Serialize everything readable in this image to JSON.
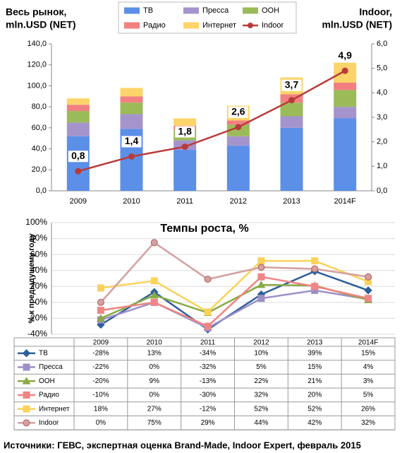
{
  "chart_data": [
    {
      "type": "bar",
      "y_label": [
        "Весь рынок,",
        "mln.USD (NET)"
      ],
      "y2_label": [
        "Indoor,",
        "mln.USD (NET)"
      ],
      "categories": [
        "2009",
        "2010",
        "2011",
        "2012",
        "2013",
        "2014F"
      ],
      "series": [
        {
          "name": "ТВ",
          "color": "#5b8fe8",
          "values": [
            52,
            59,
            39,
            43,
            60,
            69
          ]
        },
        {
          "name": "Пресса",
          "color": "#a594cc",
          "values": [
            13,
            14,
            9,
            9,
            11,
            11
          ]
        },
        {
          "name": "ООН",
          "color": "#9bbb59",
          "values": [
            11,
            11,
            10,
            11,
            13,
            16
          ]
        },
        {
          "name": "Радио",
          "color": "#f28080",
          "values": [
            6,
            6,
            4,
            4,
            8,
            7
          ]
        },
        {
          "name": "Интернет",
          "color": "#fdd46a",
          "values": [
            6,
            8,
            7,
            14,
            16,
            19
          ]
        },
        {
          "name": "Indoor",
          "color": "#b83b3b",
          "axis": "y2",
          "values": [
            0.8,
            1.4,
            1.8,
            2.6,
            3.7,
            4.9
          ],
          "value_labels": [
            "0,8",
            "1,4",
            "1,8",
            "2,6",
            "3,7",
            "4,9"
          ]
        }
      ],
      "ylim": [
        0,
        140
      ],
      "yticks": [
        {
          "value": 0,
          "label": "0,0"
        },
        {
          "value": 20,
          "label": "20,0"
        },
        {
          "value": 40,
          "label": "40,0"
        },
        {
          "value": 60,
          "label": "60,0"
        },
        {
          "value": 80,
          "label": "80,0"
        },
        {
          "value": 100,
          "label": "100,0"
        },
        {
          "value": 120,
          "label": "120,0"
        },
        {
          "value": 140,
          "label": "140,0"
        }
      ],
      "y2lim": [
        0,
        6
      ],
      "y2ticks": [
        {
          "value": 0,
          "label": "0,0"
        },
        {
          "value": 1,
          "label": "1,0"
        },
        {
          "value": 2,
          "label": "2,0"
        },
        {
          "value": 3,
          "label": "3,0"
        },
        {
          "value": 4,
          "label": "4,0"
        },
        {
          "value": 5,
          "label": "5,0"
        },
        {
          "value": 6,
          "label": "6,0"
        }
      ],
      "grid": false
    },
    {
      "type": "line",
      "title": "Темпы роста, %",
      "y_label": "% к предыдущему году",
      "categories": [
        "2009",
        "2010",
        "2011",
        "2012",
        "2013",
        "2014F"
      ],
      "series": [
        {
          "name": "ТВ",
          "color": "#2e5f9a",
          "marker": "diamond",
          "values": [
            -28,
            13,
            -34,
            10,
            39,
            15
          ],
          "value_labels": [
            "-28%",
            "13%",
            "-34%",
            "10%",
            "39%",
            "15%"
          ]
        },
        {
          "name": "Пресса",
          "color": "#9e8fc6",
          "marker": "square",
          "values": [
            -22,
            0,
            -32,
            5,
            15,
            4
          ],
          "value_labels": [
            "-22%",
            "0%",
            "-32%",
            "5%",
            "15%",
            "4%"
          ]
        },
        {
          "name": "ООН",
          "color": "#8aaa45",
          "marker": "triangle",
          "values": [
            -20,
            9,
            -13,
            22,
            21,
            3
          ],
          "value_labels": [
            "-20%",
            "9%",
            "-13%",
            "22%",
            "21%",
            "3%"
          ]
        },
        {
          "name": "Радио",
          "color": "#f08585",
          "marker": "square",
          "values": [
            -10,
            0,
            -30,
            32,
            20,
            5
          ],
          "value_labels": [
            "-10%",
            "0%",
            "-30%",
            "32%",
            "20%",
            "5%"
          ]
        },
        {
          "name": "Интернет",
          "color": "#fad25a",
          "marker": "square",
          "values": [
            18,
            27,
            -12,
            52,
            52,
            26
          ],
          "value_labels": [
            "18%",
            "27%",
            "-12%",
            "52%",
            "52%",
            "26%"
          ]
        },
        {
          "name": "Indoor",
          "color": "#d4a0a0",
          "marker": "circle",
          "values": [
            0,
            75,
            29,
            44,
            42,
            32
          ],
          "value_labels": [
            "0%",
            "75%",
            "29%",
            "44%",
            "42%",
            "32%"
          ]
        }
      ],
      "ylim": [
        -40,
        100
      ],
      "yticks": [
        {
          "value": -40,
          "label": "-40%"
        },
        {
          "value": -20,
          "label": "-20%"
        },
        {
          "value": 0,
          "label": "0%"
        },
        {
          "value": 20,
          "label": "20%"
        },
        {
          "value": 40,
          "label": "40%"
        },
        {
          "value": 60,
          "label": "60%"
        },
        {
          "value": 80,
          "label": "80%"
        },
        {
          "value": 100,
          "label": "100%"
        }
      ],
      "grid": true
    }
  ],
  "source": "Источники: ГЕВС, экспертная оценка Brand-Made, Indoor Expert, февраль 2015"
}
